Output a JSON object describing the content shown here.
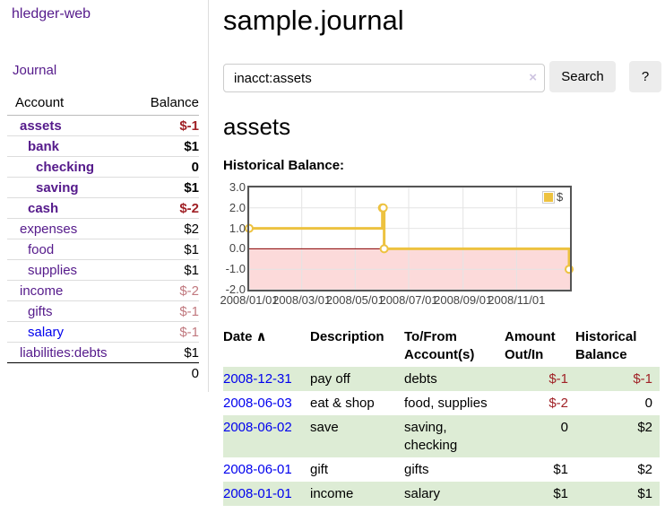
{
  "colors": {
    "link_purple": "#551a8b",
    "link_blue": "#0000ee",
    "negative_strong": "#a02126",
    "negative_soft": "#c1797f",
    "row_green": "#ddecd5",
    "accent_gold": "#edc240"
  },
  "sidebar": {
    "app_title": "hledger-web",
    "journal_link": "Journal",
    "accounts_table": {
      "headers": [
        "Account",
        "Balance"
      ],
      "rows": [
        {
          "name": "assets",
          "balance": "$-1",
          "indent": 1,
          "bold": true,
          "balance_style": "negative-strong"
        },
        {
          "name": "bank",
          "balance": "$1",
          "indent": 2,
          "bold": true,
          "balance_style": "normal"
        },
        {
          "name": "checking",
          "balance": "0",
          "indent": 3,
          "bold": true,
          "balance_style": "normal"
        },
        {
          "name": "saving",
          "balance": "$1",
          "indent": 3,
          "bold": true,
          "balance_style": "normal"
        },
        {
          "name": "cash",
          "balance": "$-2",
          "indent": 2,
          "bold": true,
          "balance_style": "negative-strong"
        },
        {
          "name": "expenses",
          "balance": "$2",
          "indent": 1,
          "bold": false,
          "balance_style": "normal"
        },
        {
          "name": "food",
          "balance": "$1",
          "indent": 2,
          "bold": false,
          "balance_style": "normal"
        },
        {
          "name": "supplies",
          "balance": "$1",
          "indent": 2,
          "bold": false,
          "balance_style": "normal"
        },
        {
          "name": "income",
          "balance": "$-2",
          "indent": 1,
          "bold": false,
          "balance_style": "negative-soft"
        },
        {
          "name": "gifts",
          "balance": "$-1",
          "indent": 2,
          "bold": false,
          "balance_style": "negative-soft"
        },
        {
          "name": "salary",
          "balance": "$-1",
          "indent": 2,
          "bold": false,
          "balance_style": "negative-soft",
          "link_style": "unvisited"
        },
        {
          "name": "liabilities:debts",
          "balance": "$1",
          "indent": 1,
          "bold": false,
          "balance_style": "normal"
        }
      ],
      "total": "0"
    }
  },
  "main": {
    "title": "sample.journal",
    "search": {
      "value": "inacct:assets",
      "clear_icon": "×",
      "button_label": "Search",
      "help_label": "?"
    },
    "account_heading": "assets",
    "chart_label": "Historical Balance:"
  },
  "chart_data": {
    "type": "line",
    "title": "Historical Balance:",
    "step": true,
    "series": [
      {
        "name": "$",
        "color": "#edc240",
        "points": [
          [
            "2008-01-01",
            1
          ],
          [
            "2008-06-01",
            2
          ],
          [
            "2008-06-02",
            2
          ],
          [
            "2008-06-03",
            0
          ],
          [
            "2008-12-31",
            -1
          ]
        ]
      }
    ],
    "x_domain": [
      "2008-01-01",
      "2009-01-01"
    ],
    "x_ticks": [
      {
        "date": "2008-01-01",
        "label": "2008/01/01"
      },
      {
        "date": "2008-03-01",
        "label": "2008/03/01"
      },
      {
        "date": "2008-05-01",
        "label": "2008/05/01"
      },
      {
        "date": "2008-07-01",
        "label": "2008/07/01"
      },
      {
        "date": "2008-09-01",
        "label": "2008/09/01"
      },
      {
        "date": "2008-11-01",
        "label": "2008/11/01"
      }
    ],
    "y_ticks": [
      {
        "value": 3,
        "label": "3.0"
      },
      {
        "value": 2,
        "label": "2.0"
      },
      {
        "value": 1,
        "label": "1.0"
      },
      {
        "value": 0,
        "label": "0.0"
      },
      {
        "value": -1,
        "label": "-1.0"
      },
      {
        "value": -2,
        "label": "-2.0"
      }
    ],
    "ylim": [
      -2,
      3
    ],
    "legend": {
      "label": "$",
      "position": "top-right"
    },
    "style": {
      "negative_region": "#fcdada",
      "zero_line": "#8b0000",
      "grid": "#e4e4e4",
      "border": "#555555"
    }
  },
  "register": {
    "columns": [
      "Date",
      "Description",
      "To/From Account(s)",
      "Amount Out/In",
      "Historical Balance"
    ],
    "sort_indicator": "∧",
    "rows": [
      {
        "date": "2008-12-31",
        "description": "pay off",
        "accounts": "debts",
        "amount": "$-1",
        "amount_negative": true,
        "balance": "$-1",
        "balance_negative": true
      },
      {
        "date": "2008-06-03",
        "description": "eat & shop",
        "accounts": "food, supplies",
        "amount": "$-2",
        "amount_negative": true,
        "balance": "0",
        "balance_negative": false
      },
      {
        "date": "2008-06-02",
        "description": "save",
        "accounts": "saving, checking",
        "amount": "0",
        "amount_negative": false,
        "balance": "$2",
        "balance_negative": false
      },
      {
        "date": "2008-06-01",
        "description": "gift",
        "accounts": "gifts",
        "amount": "$1",
        "amount_negative": false,
        "balance": "$2",
        "balance_negative": false
      },
      {
        "date": "2008-01-01",
        "description": "income",
        "accounts": "salary",
        "amount": "$1",
        "amount_negative": false,
        "balance": "$1",
        "balance_negative": false
      }
    ]
  }
}
